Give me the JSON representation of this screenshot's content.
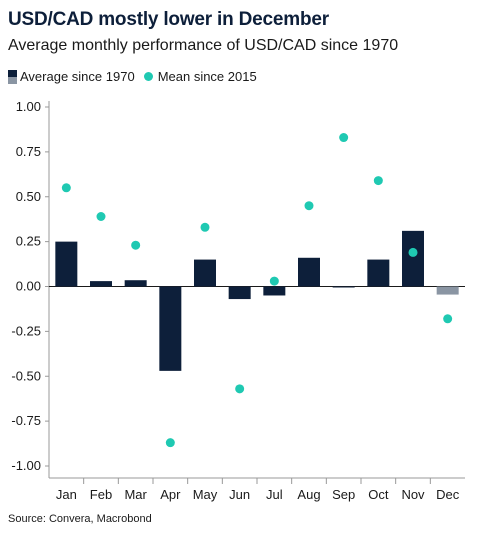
{
  "title": "USD/CAD mostly lower in December",
  "subtitle": "Average monthly performance of USD/CAD since 1970",
  "source": "Source: Convera, Macrobond",
  "colors": {
    "bar": "#0d1f3a",
    "bar_negative_last": "#8a95a3",
    "dot": "#1fc9b2",
    "axis": "#999999"
  },
  "chart_data": {
    "type": "bar",
    "title": "USD/CAD mostly lower in December",
    "subtitle": "Average monthly performance of USD/CAD since 1970",
    "categories": [
      "Jan",
      "Feb",
      "Mar",
      "Apr",
      "May",
      "Jun",
      "Jul",
      "Aug",
      "Sep",
      "Oct",
      "Nov",
      "Dec"
    ],
    "series": [
      {
        "name": "Average since 1970",
        "kind": "bar",
        "values": [
          0.25,
          0.03,
          0.035,
          -0.47,
          0.15,
          -0.07,
          -0.05,
          0.16,
          -0.005,
          0.15,
          0.31,
          -0.045
        ]
      },
      {
        "name": "Mean since 2015",
        "kind": "scatter",
        "values": [
          0.55,
          0.39,
          0.23,
          -0.87,
          0.33,
          -0.57,
          0.03,
          0.45,
          0.83,
          0.59,
          0.19,
          -0.18
        ]
      }
    ],
    "ylim": [
      -1.0,
      1.0
    ],
    "yticks": [
      "1.00",
      "0.75",
      "0.50",
      "0.25",
      "0.00",
      "-0.25",
      "-0.50",
      "-0.75",
      "-1.00"
    ],
    "ytick_values": [
      1.0,
      0.75,
      0.5,
      0.25,
      0.0,
      -0.25,
      -0.5,
      -0.75,
      -1.0
    ],
    "legend": "top-left",
    "grid": false
  }
}
